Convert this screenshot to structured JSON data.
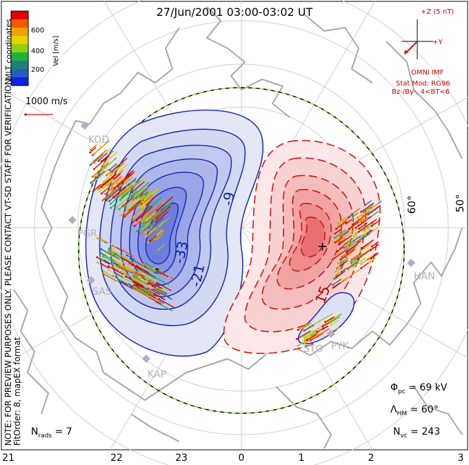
{
  "header": {
    "title": "27/Jun/2001 03:00-03:02 UT"
  },
  "colorbar": {
    "unit_label": "Vel [m/s]",
    "ticks": [
      "600",
      "400",
      "200"
    ],
    "colors": [
      "#e00000",
      "#f05a00",
      "#f0a000",
      "#e6d000",
      "#90d010",
      "#20b040",
      "#208080",
      "#2060c0",
      "#1020e0"
    ]
  },
  "coordinates_label": "MLT coordinates",
  "velocity_scale": {
    "label": "1000 m/s"
  },
  "imf": {
    "scale_label": "+Z (5 nT)",
    "y_label": "+Y",
    "source_label": "OMNI IMF",
    "stat_mod_line1": "Stat Mod: RG96",
    "stat_mod_line2": "Bz-/By-, 4<BT<6"
  },
  "side_note": {
    "line1": "NOTE: FOR PREVIEW PURPOSES ONLY. PLEASE CONTACT VT-SD STAFF FOR VERIFICATION.",
    "line2": "FitOrder: 8, mapEX format"
  },
  "latitude_labels": [
    "60°",
    "50°"
  ],
  "stations": [
    "KOD",
    "PGR",
    "SAS",
    "KAP",
    "STO",
    "PYK",
    "HAN"
  ],
  "contour_labels": [
    "-9",
    "-33",
    "-21",
    "15",
    "+",
    "-"
  ],
  "stats": {
    "nrads_label": "N",
    "nrads_sub": "rads",
    "nrads_value": " = 7",
    "phi_label": "Φ",
    "phi_sub": "pc",
    "phi_value": " = 69 kV",
    "lambda_label": "Λ",
    "lambda_sub": "HM",
    "lambda_value": " = 60°",
    "nvc_label": "N",
    "nvc_sub": "vc",
    "nvc_value": " = 243"
  },
  "mlt_axis": [
    "21",
    "22",
    "23",
    "0",
    "1",
    "2",
    "3"
  ],
  "colors": {
    "negative_cell": "#2030c0",
    "positive_cell": "#d81010",
    "annotation_red": "#d10000",
    "grid": "#c8c8c8",
    "land": "#a8a8a8"
  }
}
